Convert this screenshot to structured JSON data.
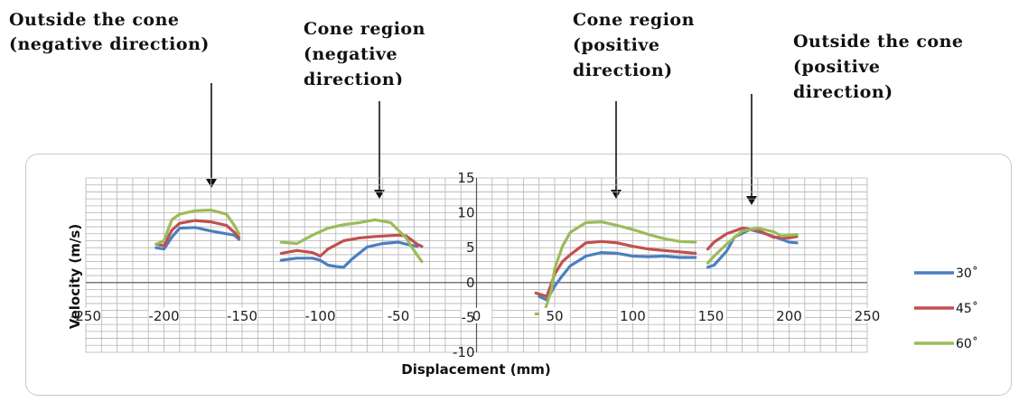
{
  "annotations": [
    {
      "line1": "Outside the cone",
      "line2": "(negative direction)",
      "line3": ""
    },
    {
      "line1": "Cone region",
      "line2": "(negative",
      "line3": "direction)"
    },
    {
      "line1": "Cone region",
      "line2": "(positive",
      "line3": "direction)"
    },
    {
      "line1": "Outside the cone",
      "line2": "(positive",
      "line3": "direction)"
    }
  ],
  "chart_data": {
    "type": "line",
    "xlabel": "Displacement (mm)",
    "ylabel": "Velocity (m/s)",
    "xlim": [
      -250,
      250
    ],
    "ylim": [
      -10,
      15
    ],
    "xticks": [
      -250,
      -200,
      -150,
      -100,
      -50,
      0,
      50,
      100,
      150,
      200,
      250
    ],
    "yticks": [
      -10,
      -5,
      0,
      5,
      10,
      15
    ],
    "grid": true,
    "legend_position": "right",
    "series": [
      {
        "name": "30˚",
        "color": "#4a7fc1",
        "segments": [
          [
            [
              -205,
              5
            ],
            [
              -200,
              4.8
            ],
            [
              -195,
              6.5
            ],
            [
              -190,
              7.8
            ],
            [
              -180,
              7.9
            ],
            [
              -170,
              7.4
            ],
            [
              -160,
              7
            ],
            [
              -155,
              6.8
            ],
            [
              -152,
              6.2
            ]
          ],
          [
            [
              -125,
              3.2
            ],
            [
              -115,
              3.5
            ],
            [
              -105,
              3.5
            ],
            [
              -100,
              3.2
            ],
            [
              -95,
              2.5
            ],
            [
              -90,
              2.3
            ],
            [
              -85,
              2.2
            ],
            [
              -80,
              3.3
            ],
            [
              -70,
              5.1
            ],
            [
              -60,
              5.6
            ],
            [
              -50,
              5.8
            ],
            [
              -45,
              5.5
            ],
            [
              -38,
              5.2
            ]
          ],
          [
            [
              40,
              -2
            ],
            [
              45,
              -2.5
            ],
            [
              50,
              -0.5
            ],
            [
              55,
              1
            ],
            [
              60,
              2.4
            ],
            [
              70,
              3.8
            ],
            [
              80,
              4.3
            ],
            [
              90,
              4.2
            ],
            [
              100,
              3.8
            ],
            [
              110,
              3.7
            ],
            [
              120,
              3.8
            ],
            [
              130,
              3.6
            ],
            [
              140,
              3.6
            ]
          ],
          [
            [
              148,
              2.2
            ],
            [
              152,
              2.5
            ],
            [
              160,
              4.5
            ],
            [
              165,
              6.5
            ],
            [
              175,
              7.6
            ],
            [
              185,
              7
            ],
            [
              195,
              6.2
            ],
            [
              200,
              5.8
            ],
            [
              205,
              5.7
            ]
          ]
        ]
      },
      {
        "name": "45˚",
        "color": "#c0504d",
        "segments": [
          [
            [
              -205,
              5.5
            ],
            [
              -200,
              5.3
            ],
            [
              -195,
              7.5
            ],
            [
              -190,
              8.5
            ],
            [
              -180,
              8.9
            ],
            [
              -170,
              8.7
            ],
            [
              -160,
              8.2
            ],
            [
              -155,
              7.2
            ],
            [
              -152,
              6.5
            ]
          ],
          [
            [
              -125,
              4.2
            ],
            [
              -115,
              4.6
            ],
            [
              -105,
              4.3
            ],
            [
              -100,
              3.8
            ],
            [
              -95,
              4.8
            ],
            [
              -85,
              6
            ],
            [
              -75,
              6.4
            ],
            [
              -65,
              6.6
            ],
            [
              -50,
              6.8
            ],
            [
              -45,
              6.7
            ],
            [
              -38,
              5.5
            ],
            [
              -35,
              5.2
            ]
          ],
          [
            [
              38,
              -1.5
            ],
            [
              45,
              -2
            ],
            [
              50,
              1.2
            ],
            [
              55,
              3
            ],
            [
              60,
              4
            ],
            [
              70,
              5.7
            ],
            [
              80,
              5.9
            ],
            [
              90,
              5.7
            ],
            [
              100,
              5.2
            ],
            [
              110,
              4.8
            ],
            [
              120,
              4.6
            ],
            [
              130,
              4.4
            ],
            [
              140,
              4.2
            ]
          ],
          [
            [
              148,
              4.8
            ],
            [
              152,
              5.8
            ],
            [
              160,
              7
            ],
            [
              170,
              7.8
            ],
            [
              180,
              7.5
            ],
            [
              190,
              6.5
            ],
            [
              200,
              6.4
            ],
            [
              205,
              6.6
            ]
          ]
        ]
      },
      {
        "name": "60˚",
        "color": "#9bbb59",
        "segments": [
          [
            [
              -205,
              5.5
            ],
            [
              -200,
              6
            ],
            [
              -195,
              9
            ],
            [
              -190,
              9.8
            ],
            [
              -180,
              10.3
            ],
            [
              -170,
              10.4
            ],
            [
              -160,
              9.8
            ],
            [
              -155,
              8.2
            ],
            [
              -152,
              7
            ]
          ],
          [
            [
              -125,
              5.8
            ],
            [
              -115,
              5.6
            ],
            [
              -105,
              6.8
            ],
            [
              -95,
              7.8
            ],
            [
              -85,
              8.3
            ],
            [
              -75,
              8.6
            ],
            [
              -65,
              9
            ],
            [
              -55,
              8.6
            ],
            [
              -50,
              7.5
            ],
            [
              -45,
              6.4
            ],
            [
              -40,
              4.6
            ],
            [
              -35,
              3
            ]
          ],
          [
            [
              38,
              -4.5
            ],
            [
              43,
              -4.5
            ],
            [
              48,
              -1
            ],
            [
              50,
              2
            ],
            [
              55,
              5.2
            ],
            [
              60,
              7.2
            ],
            [
              70,
              8.6
            ],
            [
              80,
              8.7
            ],
            [
              90,
              8.2
            ],
            [
              100,
              7.6
            ],
            [
              110,
              6.9
            ],
            [
              120,
              6.3
            ],
            [
              130,
              5.9
            ],
            [
              140,
              5.8
            ]
          ],
          [
            [
              148,
              2.8
            ],
            [
              152,
              3.8
            ],
            [
              160,
              5.5
            ],
            [
              170,
              7.4
            ],
            [
              180,
              7.8
            ],
            [
              190,
              7.3
            ],
            [
              195,
              6.7
            ],
            [
              205,
              6.9
            ]
          ]
        ]
      }
    ]
  }
}
